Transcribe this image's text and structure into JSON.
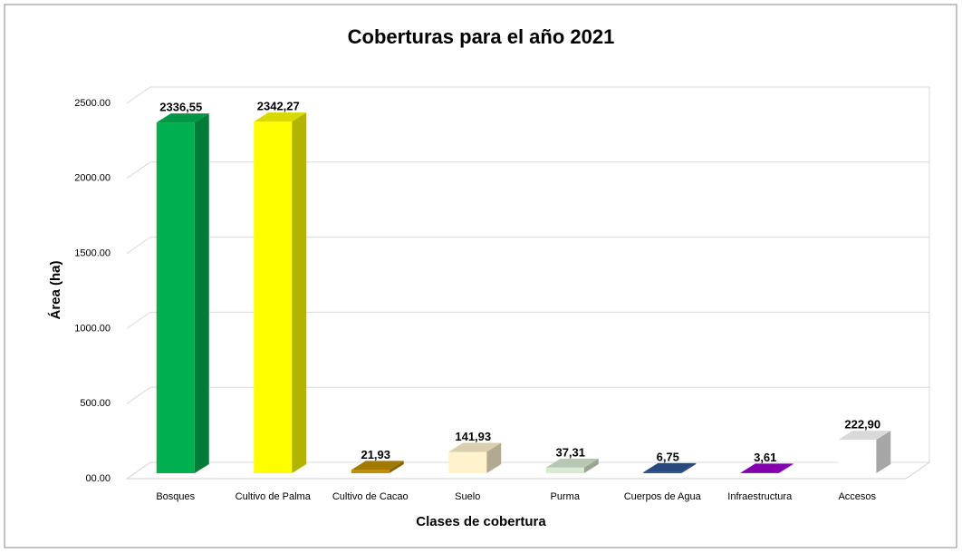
{
  "chart_data": {
    "type": "bar3d",
    "title": "Coberturas para el año 2021",
    "xlabel": "Clases de cobertura",
    "ylabel": "Área (ha)",
    "categories": [
      "Bosques",
      "Cultivo de Palma",
      "Cultivo de Cacao",
      "Suelo",
      "Purma",
      "Cuerpos de Agua",
      "Infraestructura",
      "Accesos"
    ],
    "values": [
      2336.55,
      2342.27,
      21.93,
      141.93,
      37.31,
      6.75,
      3.61,
      222.9
    ],
    "value_labels": [
      "2336,55",
      "2342,27",
      "21,93",
      "141,93",
      "37,31",
      "6,75",
      "3,61",
      "222,90"
    ],
    "colors": [
      "#00b050",
      "#ffff00",
      "#bf8f00",
      "#fff2cc",
      "#d9ead3",
      "#2f5597",
      "#9900cc",
      "#ffffff"
    ],
    "ylim": [
      0,
      2500
    ],
    "yticks": [
      {
        "value": 0,
        "label": "00.00"
      },
      {
        "value": 500,
        "label": "500.00"
      },
      {
        "value": 1000,
        "label": "1000.00"
      },
      {
        "value": 1500,
        "label": "1500.00"
      },
      {
        "value": 2000,
        "label": "2000.00"
      },
      {
        "value": 2500,
        "label": "2500.00"
      }
    ],
    "grid": true
  }
}
